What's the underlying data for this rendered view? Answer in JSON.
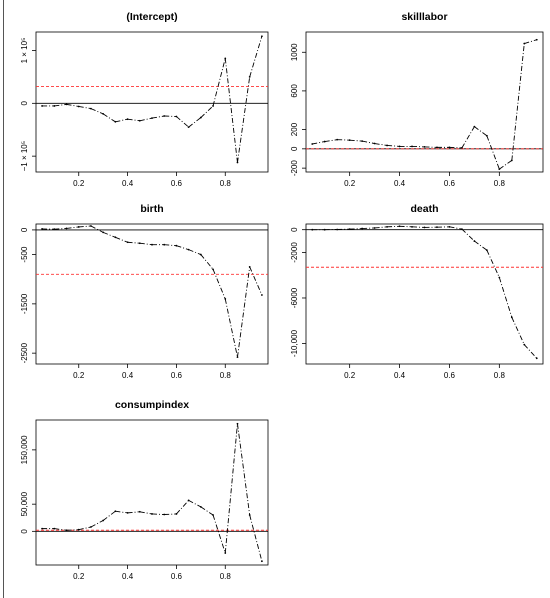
{
  "colors": {
    "series": "#000000",
    "zero_line": "#000000",
    "mean_line": "#ff3333",
    "frame": "#000000"
  },
  "chart_data": [
    {
      "type": "line",
      "title": "(Intercept)",
      "x": [
        0.05,
        0.1,
        0.15,
        0.2,
        0.25,
        0.3,
        0.35,
        0.4,
        0.45,
        0.5,
        0.55,
        0.6,
        0.65,
        0.7,
        0.75,
        0.8,
        0.85,
        0.9,
        0.95
      ],
      "series": [
        {
          "values": [
            -5000,
            -5000,
            -2000,
            -6000,
            -10000,
            -20000,
            -35000,
            -30000,
            -33000,
            -28000,
            -24000,
            -25000,
            -45000,
            -27000,
            -5000,
            85000,
            -112000,
            50000,
            127000
          ]
        }
      ],
      "hline_mean": 32000,
      "hline_zero": 0,
      "xlim": [
        0.025,
        0.975
      ],
      "ylim": [
        -130000,
        135000
      ],
      "x_ticks": [
        0.2,
        0.4,
        0.6,
        0.8
      ],
      "x_tick_labels": [
        "0.2",
        "0.4",
        "0.6",
        "0.8"
      ],
      "y_ticks": [
        -100000,
        0,
        100000
      ],
      "y_tick_labels": [
        "−1 × 10⁵",
        "0",
        "1 × 10⁵"
      ],
      "xlabel": "",
      "ylabel": ""
    },
    {
      "type": "line",
      "title": "skilllabor",
      "x": [
        0.05,
        0.1,
        0.15,
        0.2,
        0.25,
        0.3,
        0.35,
        0.4,
        0.45,
        0.5,
        0.55,
        0.6,
        0.65,
        0.7,
        0.75,
        0.8,
        0.85,
        0.9,
        0.95
      ],
      "series": [
        {
          "values": [
            50,
            75,
            95,
            90,
            80,
            55,
            35,
            25,
            25,
            20,
            15,
            15,
            10,
            230,
            135,
            -210,
            -120,
            1090,
            1130
          ]
        }
      ],
      "hline_mean": 0,
      "hline_zero": 0,
      "xlim": [
        0.025,
        0.975
      ],
      "ylim": [
        -240,
        1210
      ],
      "x_ticks": [
        0.2,
        0.4,
        0.6,
        0.8
      ],
      "x_tick_labels": [
        "0.2",
        "0.4",
        "0.6",
        "0.8"
      ],
      "y_ticks": [
        -200,
        0,
        200,
        600,
        1000
      ],
      "y_tick_labels": [
        "-200",
        "0",
        "200",
        "600",
        "1000"
      ],
      "xlabel": "",
      "ylabel": ""
    },
    {
      "type": "line",
      "title": "birth",
      "x": [
        0.05,
        0.1,
        0.15,
        0.2,
        0.25,
        0.3,
        0.35,
        0.4,
        0.45,
        0.5,
        0.55,
        0.6,
        0.65,
        0.7,
        0.75,
        0.8,
        0.85,
        0.9,
        0.95
      ],
      "series": [
        {
          "values": [
            20,
            15,
            30,
            60,
            80,
            -50,
            -150,
            -250,
            -270,
            -300,
            -300,
            -320,
            -400,
            -500,
            -800,
            -1400,
            -2580,
            -750,
            -1320
          ]
        }
      ],
      "hline_mean": -900,
      "hline_zero": 0,
      "xlim": [
        0.025,
        0.975
      ],
      "ylim": [
        -2720,
        120
      ],
      "x_ticks": [
        0.2,
        0.4,
        0.6,
        0.8
      ],
      "x_tick_labels": [
        "0.2",
        "0.4",
        "0.6",
        "0.8"
      ],
      "y_ticks": [
        -2500,
        -1500,
        -500,
        0
      ],
      "y_tick_labels": [
        "-2500",
        "-1500",
        "-500",
        "0"
      ],
      "xlabel": "",
      "ylabel": ""
    },
    {
      "type": "line",
      "title": "death",
      "x": [
        0.05,
        0.1,
        0.15,
        0.2,
        0.25,
        0.3,
        0.35,
        0.4,
        0.45,
        0.5,
        0.55,
        0.6,
        0.65,
        0.7,
        0.75,
        0.8,
        0.85,
        0.9,
        0.95
      ],
      "series": [
        {
          "values": [
            0,
            0,
            20,
            50,
            100,
            150,
            250,
            300,
            250,
            200,
            220,
            250,
            50,
            -1000,
            -1800,
            -4200,
            -7700,
            -10100,
            -11300
          ]
        }
      ],
      "hline_mean": -3300,
      "hline_zero": 0,
      "xlim": [
        0.025,
        0.975
      ],
      "ylim": [
        -11800,
        500
      ],
      "x_ticks": [
        0.2,
        0.4,
        0.6,
        0.8
      ],
      "x_tick_labels": [
        "0.2",
        "0.4",
        "0.6",
        "0.8"
      ],
      "y_ticks": [
        -10000,
        -6000,
        -2000,
        0
      ],
      "y_tick_labels": [
        "-10,000",
        "-6000",
        "-2000",
        "0"
      ],
      "xlabel": "",
      "ylabel": ""
    },
    {
      "type": "line",
      "title": "consumpindex",
      "x": [
        0.05,
        0.1,
        0.15,
        0.2,
        0.25,
        0.3,
        0.35,
        0.4,
        0.45,
        0.5,
        0.55,
        0.6,
        0.65,
        0.7,
        0.75,
        0.8,
        0.85,
        0.9,
        0.95
      ],
      "series": [
        {
          "values": [
            5000,
            5000,
            2000,
            3000,
            8000,
            20000,
            37000,
            34000,
            36000,
            32000,
            31000,
            32000,
            57000,
            45000,
            30000,
            -40000,
            198000,
            30000,
            -55000
          ]
        }
      ],
      "hline_mean": 2000,
      "hline_zero": 0,
      "xlim": [
        0.025,
        0.975
      ],
      "ylim": [
        -62000,
        205000
      ],
      "x_ticks": [
        0.2,
        0.4,
        0.6,
        0.8
      ],
      "x_tick_labels": [
        "0.2",
        "0.4",
        "0.6",
        "0.8"
      ],
      "y_ticks": [
        0,
        50000,
        150000
      ],
      "y_tick_labels": [
        "0",
        "50,000",
        "150,000"
      ],
      "xlabel": "",
      "ylabel": ""
    }
  ]
}
